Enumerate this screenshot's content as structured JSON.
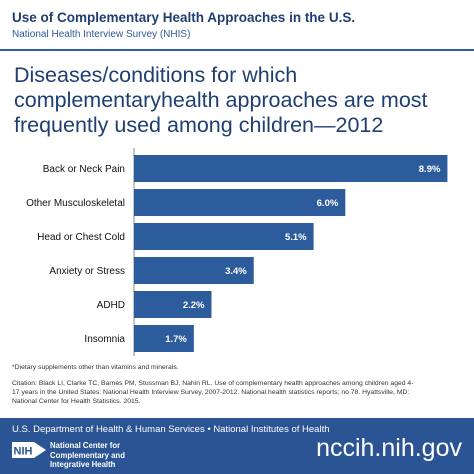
{
  "header": {
    "title": "Use of Complementary Health Approaches in the U.S.",
    "subtitle": "National Health Interview Survey (NHIS)"
  },
  "heading": "Diseases/conditions for which complementaryhealth approaches are most frequently used among children—2012",
  "chart_data": {
    "type": "bar",
    "orientation": "horizontal",
    "categories": [
      "Back or Neck Pain",
      "Other Musculoskeletal",
      "Head or Chest Cold",
      "Anxiety or Stress",
      "ADHD",
      "Insomnia"
    ],
    "values": [
      8.9,
      6.0,
      5.1,
      3.4,
      2.2,
      1.7
    ],
    "value_labels": [
      "8.9%",
      "6.0%",
      "5.1%",
      "3.4%",
      "2.2%",
      "1.7%"
    ],
    "xlim": [
      0,
      9.2
    ],
    "bar_color": "#2d5c9c",
    "axis_color": "#888888",
    "grid": false,
    "legend": false
  },
  "footnote": "*Dietary supplements other than vitamins and minerals.",
  "citation": "Citation: Black LI, Clarke TC, Barnes PM, Stussman BJ, Nahin RL. Use of complementary health approaches among children aged 4-17 years in the United States: National Health Interview Survey, 2007-2012. National health statistics reports; no 78. Hyattsville, MD: National Center for Health Statistics. 2015.",
  "footer": {
    "agencies": "U.S. Department of Health & Human Services • National Institutes of Health",
    "logo_text": "NIH",
    "center_name": "National Center for Complementary and Integrative Health",
    "website": "nccih.nih.gov"
  },
  "colors": {
    "header_text": "#1f3f73",
    "accent_blue": "#2f5fa8",
    "footer_bg": "#2a5493"
  }
}
